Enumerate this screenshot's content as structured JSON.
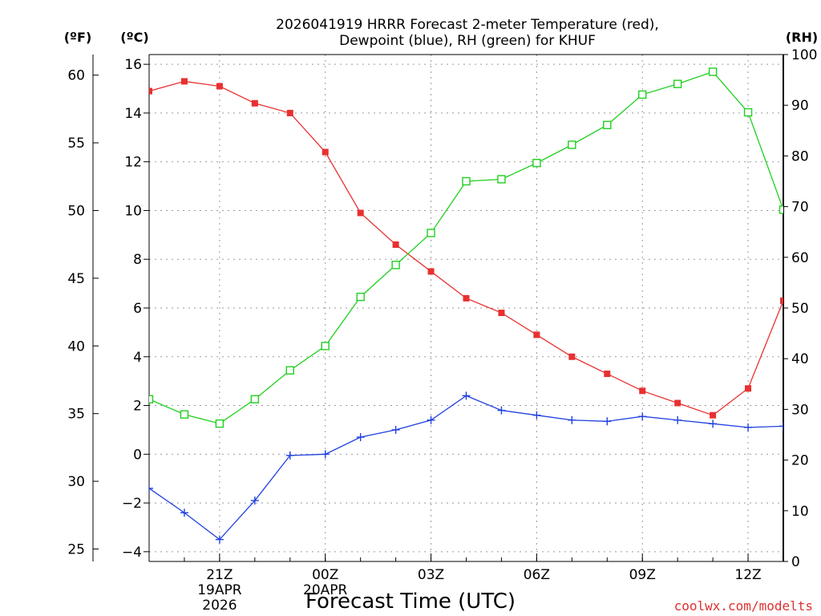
{
  "chart_data": {
    "type": "line",
    "title_line1": "2026041919 HRRR Forecast 2-meter Temperature (red),",
    "title_line2": "Dewpoint (blue), RH (green) for KHUF",
    "xlabel": "Forecast Time (UTC)",
    "credit": "coolwx.com/modelts",
    "units": {
      "f": "(ºF)",
      "c": "(ºC)",
      "rh": "(RH)"
    },
    "x_hours": [
      19,
      20,
      21,
      22,
      23,
      24,
      25,
      26,
      27,
      28,
      29,
      30,
      31,
      32,
      33,
      34,
      35,
      36,
      37
    ],
    "x_range": [
      19,
      37
    ],
    "x_ticks": [
      {
        "h": 21,
        "lines": [
          "21Z",
          "19APR",
          "2026"
        ]
      },
      {
        "h": 24,
        "lines": [
          "00Z",
          "20APR"
        ]
      },
      {
        "h": 27,
        "lines": [
          "03Z"
        ]
      },
      {
        "h": 30,
        "lines": [
          "06Z"
        ]
      },
      {
        "h": 33,
        "lines": [
          "09Z"
        ]
      },
      {
        "h": 36,
        "lines": [
          "12Z"
        ]
      }
    ],
    "y_celsius": {
      "range": [
        -4.4,
        16.4
      ],
      "ticks": [
        -4,
        -2,
        0,
        2,
        4,
        6,
        8,
        10,
        12,
        14,
        16
      ]
    },
    "y_fahrenheit": {
      "ticks": [
        25,
        30,
        35,
        40,
        45,
        50,
        55,
        60
      ]
    },
    "y_rh": {
      "range": [
        0,
        100
      ],
      "ticks": [
        0,
        10,
        20,
        30,
        40,
        50,
        60,
        70,
        80,
        90,
        100
      ]
    },
    "colors": {
      "temperature": "#e83030",
      "dewpoint": "#2040e0",
      "rh": "#20d020"
    },
    "series": [
      {
        "name": "Temperature",
        "axis": "c",
        "marker": "filled-square",
        "values": [
          14.9,
          15.3,
          15.1,
          14.4,
          14.0,
          12.4,
          9.9,
          8.6,
          7.5,
          6.4,
          5.8,
          4.9,
          4.0,
          3.3,
          2.6,
          2.1,
          1.6,
          2.7,
          6.3
        ]
      },
      {
        "name": "Dewpoint",
        "axis": "c",
        "marker": "plus",
        "values": [
          -1.4,
          -2.4,
          -3.5,
          -1.9,
          -0.05,
          0.0,
          0.7,
          1.0,
          1.4,
          2.4,
          1.8,
          1.6,
          1.4,
          1.35,
          1.55,
          1.4,
          1.25,
          1.1,
          1.15
        ]
      },
      {
        "name": "RH",
        "axis": "rh",
        "marker": "open-square",
        "values": [
          32,
          29,
          27.2,
          32,
          37.7,
          42.5,
          52.2,
          58.5,
          64.8,
          75.0,
          75.4,
          78.6,
          82.2,
          86.1,
          92.1,
          94.2,
          96.6,
          88.6,
          69.4
        ]
      }
    ]
  }
}
